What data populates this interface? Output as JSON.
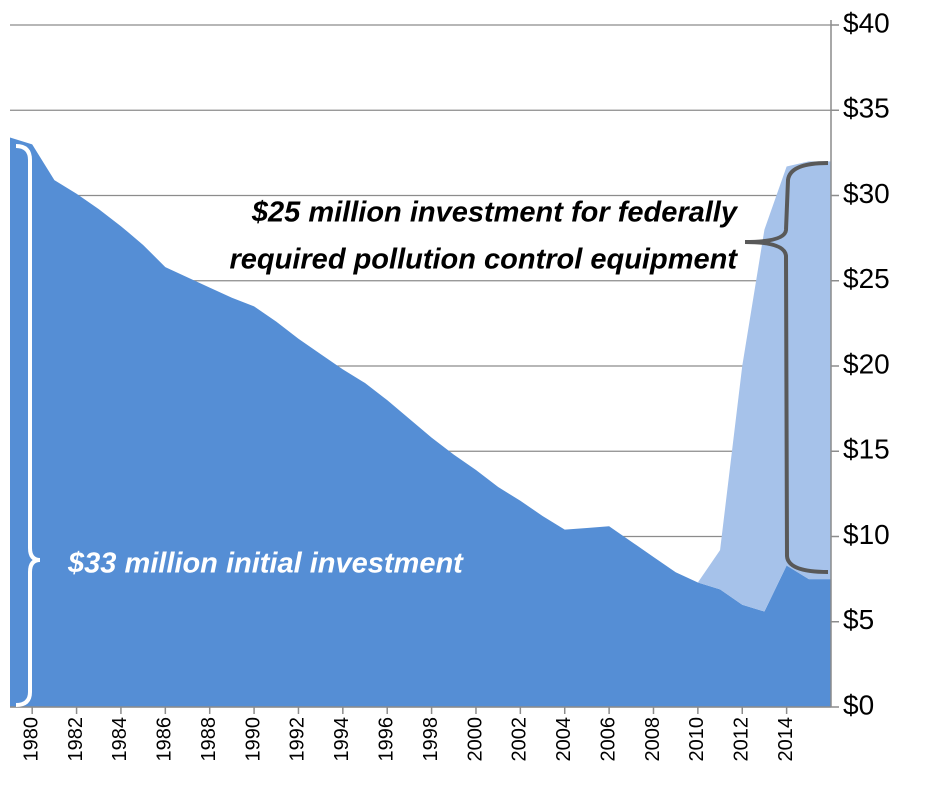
{
  "chart_data": {
    "type": "area",
    "stacked": true,
    "x": [
      1979,
      1980,
      1981,
      1982,
      1983,
      1984,
      1985,
      1986,
      1987,
      1988,
      1989,
      1990,
      1991,
      1992,
      1993,
      1994,
      1995,
      1996,
      1997,
      1998,
      1999,
      2000,
      2001,
      2002,
      2003,
      2004,
      2005,
      2006,
      2007,
      2008,
      2009,
      2010,
      2011,
      2012,
      2013,
      2014,
      2015,
      2016
    ],
    "series": [
      {
        "color": "#558ed5",
        "values": [
          33.4,
          33.0,
          30.9,
          30.1,
          29.2,
          28.2,
          27.1,
          25.8,
          25.2,
          24.6,
          24.0,
          23.5,
          22.6,
          21.6,
          20.7,
          19.8,
          19.0,
          18.0,
          16.9,
          15.8,
          14.8,
          13.9,
          12.9,
          12.1,
          11.2,
          10.4,
          10.5,
          10.6,
          9.7,
          8.8,
          7.9,
          7.3,
          6.9,
          6.0,
          5.6,
          8.3,
          7.5,
          7.5
        ]
      },
      {
        "color": "#a6c2ea",
        "values": [
          null,
          null,
          null,
          null,
          null,
          null,
          null,
          null,
          null,
          null,
          null,
          null,
          null,
          null,
          null,
          null,
          null,
          null,
          null,
          null,
          null,
          null,
          null,
          null,
          null,
          null,
          null,
          null,
          null,
          null,
          null,
          0,
          2.3,
          14.0,
          22.4,
          23.4,
          24.5,
          24.5
        ]
      }
    ],
    "xlim": [
      1979,
      2016
    ],
    "xticks": [
      1980,
      1982,
      1984,
      1986,
      1988,
      1990,
      1992,
      1994,
      1996,
      1998,
      2000,
      2002,
      2004,
      2006,
      2008,
      2010,
      2012,
      2014
    ],
    "ylim": [
      0,
      40
    ],
    "yticks": [
      {
        "value": 0,
        "label": "$0"
      },
      {
        "value": 5,
        "label": "$5"
      },
      {
        "value": 10,
        "label": "$10"
      },
      {
        "value": 15,
        "label": "$15"
      },
      {
        "value": 20,
        "label": "$20"
      },
      {
        "value": 25,
        "label": "$25"
      },
      {
        "value": 30,
        "label": "$30"
      },
      {
        "value": 35,
        "label": "$35"
      },
      {
        "value": 40,
        "label": "$40"
      }
    ],
    "grid": true,
    "annotations": [
      {
        "lines": [
          "$25 million investment for federally",
          "required pollution control equipment"
        ]
      },
      {
        "lines": [
          "$33 million initial investment"
        ]
      }
    ]
  }
}
